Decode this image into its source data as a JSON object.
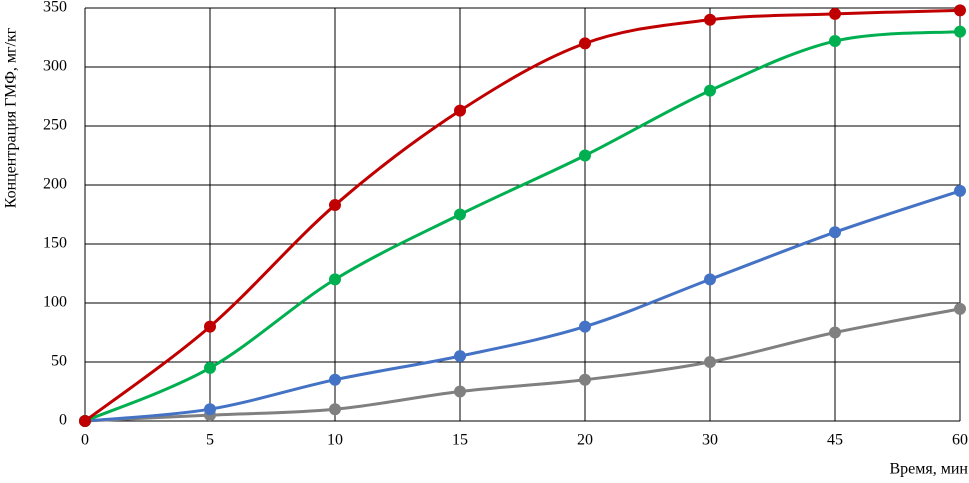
{
  "chart_data": {
    "type": "line",
    "x_label": "Время, мин",
    "y_label": "Концентрация ГМФ, мг/кг",
    "categories": [
      0,
      5,
      10,
      15,
      20,
      30,
      45,
      60
    ],
    "series": [
      {
        "color": "#c00000",
        "values": [
          0,
          80,
          183,
          263,
          320,
          340,
          345,
          348
        ]
      },
      {
        "color": "#00b050",
        "values": [
          0,
          45,
          120,
          175,
          225,
          280,
          322,
          330
        ]
      },
      {
        "color": "#4472c4",
        "values": [
          0,
          10,
          35,
          55,
          80,
          120,
          160,
          195
        ]
      },
      {
        "color": "#808080",
        "values": [
          0,
          5,
          10,
          25,
          35,
          50,
          75,
          95
        ]
      }
    ],
    "ylim": [
      0,
      350
    ],
    "yticks": [
      0,
      50,
      100,
      150,
      200,
      250,
      300,
      350
    ],
    "grid": true,
    "smooth": true
  }
}
